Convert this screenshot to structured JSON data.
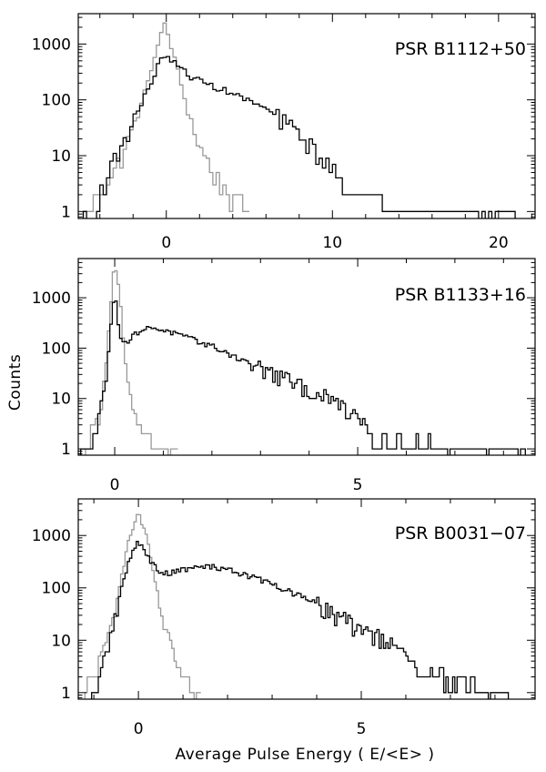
{
  "figure": {
    "ylabel": "Counts",
    "xlabel": "Average Pulse Energy ( E/<E> )"
  },
  "chart_data": [
    {
      "type": "histogram",
      "title": "PSR B1112+50",
      "yscale": "log",
      "xlim": [
        -5.3,
        22.2
      ],
      "ylim": [
        0.75,
        3500
      ],
      "xticks": [
        0,
        10,
        20
      ],
      "yticks": [
        1,
        10,
        100,
        1000
      ],
      "ytick_labels": [
        "1",
        "10",
        "100",
        "1000"
      ],
      "bin_width": 0.2,
      "series": [
        {
          "color": "#000000",
          "x": [
            -5.0,
            -4.0,
            -3.0,
            -2.0,
            -1.0,
            -0.5,
            -0.1,
            0.5,
            1.5,
            2.5,
            4.0,
            6.0,
            8.0,
            9.5,
            11.0,
            12.0,
            14.0,
            16.0,
            18.0,
            20.0,
            21.0
          ],
          "y": [
            0,
            2,
            10,
            40,
            180,
            400,
            650,
            450,
            260,
            190,
            130,
            70,
            25,
            8,
            3,
            1.5,
            1.2,
            1,
            1,
            1,
            1
          ]
        },
        {
          "color": "#999999",
          "x": [
            -5.0,
            -4.0,
            -3.0,
            -2.0,
            -1.5,
            -1.0,
            -0.5,
            -0.1,
            0.3,
            0.8,
            1.3,
            2.0,
            2.7,
            3.4,
            4.2,
            5.0
          ],
          "y": [
            1,
            2,
            6,
            30,
            80,
            300,
            900,
            2400,
            900,
            250,
            60,
            15,
            6,
            3,
            1.5,
            1
          ]
        }
      ]
    },
    {
      "type": "histogram",
      "title": "PSR B1133+16",
      "yscale": "log",
      "xlim": [
        -0.75,
        8.65
      ],
      "ylim": [
        0.75,
        6000
      ],
      "xticks": [
        0,
        5
      ],
      "yticks": [
        1,
        10,
        100,
        1000
      ],
      "ytick_labels": [
        "1",
        "10",
        "100",
        "1000"
      ],
      "bin_width": 0.05,
      "series": [
        {
          "color": "#000000",
          "x": [
            -0.7,
            -0.5,
            -0.3,
            -0.2,
            -0.1,
            0.0,
            0.1,
            0.2,
            0.5,
            0.8,
            1.2,
            2.0,
            3.0,
            4.0,
            5.0,
            5.4,
            6.0,
            6.5,
            7.0,
            7.5,
            8.0,
            8.5
          ],
          "y": [
            1,
            1,
            5,
            20,
            150,
            1500,
            200,
            120,
            220,
            260,
            200,
            110,
            40,
            15,
            5,
            1.5,
            1.5,
            1.2,
            1,
            1,
            1,
            1
          ]
        },
        {
          "color": "#999999",
          "x": [
            -0.6,
            -0.4,
            -0.3,
            -0.2,
            -0.1,
            -0.05,
            0.0,
            0.1,
            0.2,
            0.3,
            0.5,
            0.7,
            0.9,
            1.1,
            1.3
          ],
          "y": [
            1,
            3,
            6,
            30,
            400,
            2000,
            4500,
            1200,
            80,
            10,
            3,
            1.5,
            1,
            1,
            1
          ]
        }
      ]
    },
    {
      "type": "histogram",
      "title": "PSR B0031−07",
      "yscale": "log",
      "xlim": [
        -1.35,
        8.9
      ],
      "ylim": [
        0.75,
        5000
      ],
      "xticks": [
        0,
        5
      ],
      "yticks": [
        1,
        10,
        100,
        1000
      ],
      "ytick_labels": [
        "1",
        "10",
        "100",
        "1000"
      ],
      "bin_width": 0.05,
      "series": [
        {
          "color": "#000000",
          "x": [
            -1.2,
            -1.0,
            -0.8,
            -0.5,
            -0.2,
            0.0,
            0.2,
            0.5,
            1.0,
            1.5,
            2.0,
            3.0,
            4.0,
            4.8,
            5.5,
            6.0,
            6.3,
            7.0,
            7.5,
            8.0,
            8.3
          ],
          "y": [
            0,
            1,
            3,
            40,
            350,
            800,
            400,
            180,
            220,
            260,
            230,
            120,
            50,
            20,
            10,
            5,
            2,
            2,
            1.5,
            1,
            1
          ]
        },
        {
          "color": "#999999",
          "x": [
            -1.2,
            -1.0,
            -0.8,
            -0.6,
            -0.4,
            -0.2,
            0.0,
            0.2,
            0.4,
            0.6,
            0.8,
            1.0,
            1.2,
            1.4
          ],
          "y": [
            1,
            2,
            5,
            20,
            150,
            900,
            2800,
            800,
            100,
            15,
            5,
            2,
            1,
            1
          ]
        }
      ]
    }
  ]
}
